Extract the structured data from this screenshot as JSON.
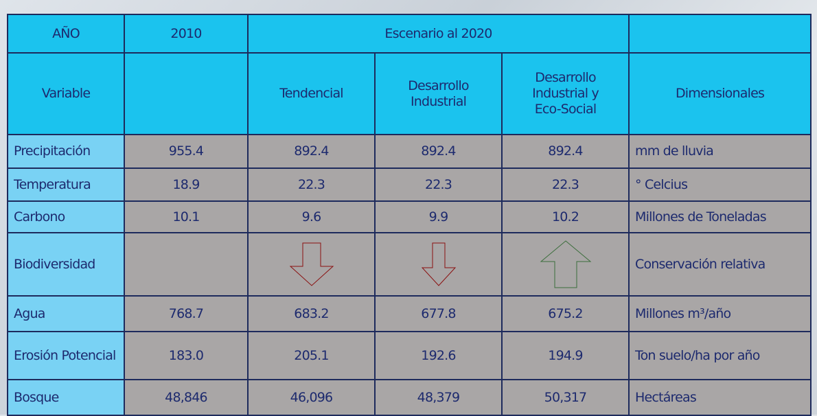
{
  "header": {
    "row1": {
      "year": "AÑO",
      "base": "2010",
      "scenario": "Escenario al 2020"
    },
    "row2": {
      "variable": "Variable",
      "scenarios": [
        "Tendencial",
        "Desarrollo Industrial",
        "Desarrollo Industrial y Eco-Social"
      ],
      "units": "Dimensionales"
    }
  },
  "table": {
    "rows": [
      {
        "variable": "Precipitación",
        "values": [
          "955.4",
          "892.4",
          "892.4",
          "892.4"
        ],
        "unit": "mm de lluvia"
      },
      {
        "variable": "Temperatura",
        "values": [
          "18.9",
          "22.3",
          "22.3",
          "22.3"
        ],
        "unit": "° Celcius"
      },
      {
        "variable": "Carbono",
        "values": [
          "10.1",
          "9.6",
          "9.9",
          "10.2"
        ],
        "unit": "Millones de Toneladas"
      },
      {
        "variable": "Biodiversidad",
        "unit": "Conservación relativa"
      },
      {
        "variable": "Agua",
        "values": [
          "768.7",
          "683.2",
          "677.8",
          "675.2"
        ],
        "unit": "Millones m³/año"
      },
      {
        "variable": "Erosión Potencial",
        "values": [
          "183.0",
          "205.1",
          "192.6",
          "194.9"
        ],
        "unit": "Ton suelo/ha por año"
      },
      {
        "variable": "Bosque",
        "values": [
          "48,846",
          "46,096",
          "48,379",
          "50,317"
        ],
        "unit": "Hectáreas"
      }
    ]
  }
}
